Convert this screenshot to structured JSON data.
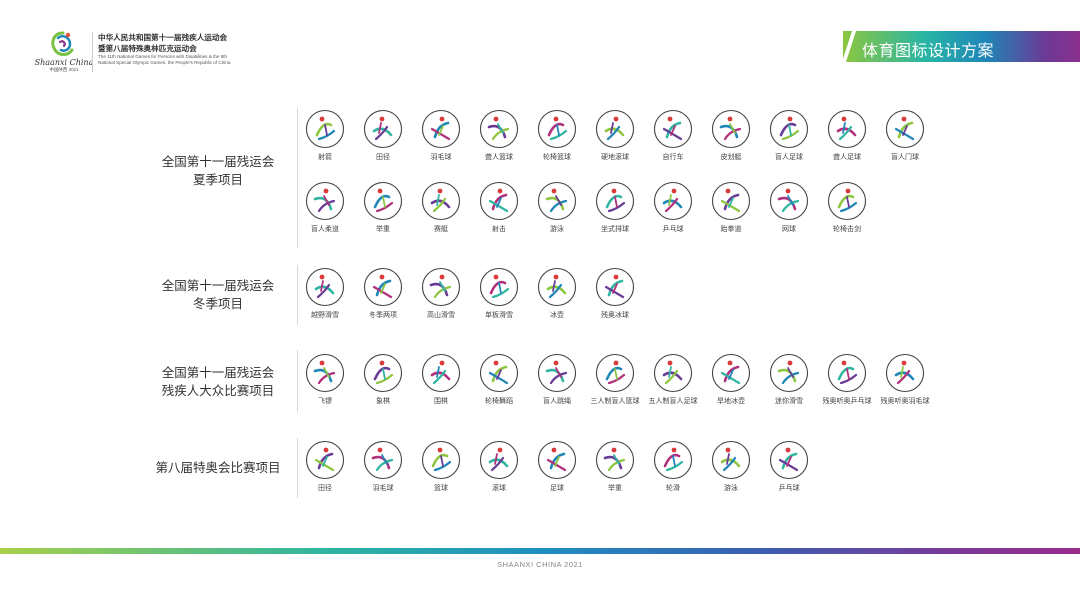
{
  "header": {
    "logo_script": "Shaanxi China",
    "logo_year": "中国陕西 2021",
    "org_cn_line1": "中华人民共和国第十一届残疾人运动会",
    "org_cn_line2": "暨第八届特殊奥林匹克运动会",
    "org_en_line1": "The 11th National Games for Persons with Disabilities & the 8th",
    "org_en_line2": "National Special Olympic Games, the People's Republic of China",
    "banner_title": "体育图标设计方案"
  },
  "colors": {
    "green": "#8cc63f",
    "teal": "#2fb5a0",
    "blue": "#1f86b8",
    "purple": "#6a3b96",
    "magenta": "#b0307e",
    "red": "#d93a3a"
  },
  "sections": [
    {
      "label_line1": "全国第十一届残运会",
      "label_line2": "夏季项目",
      "icons": [
        "射箭",
        "田径",
        "羽毛球",
        "聋人篮球",
        "轮椅篮球",
        "硬地滚球",
        "自行车",
        "皮划艇",
        "盲人足球",
        "聋人足球",
        "盲人门球",
        "盲人柔道",
        "举重",
        "赛艇",
        "射击",
        "游泳",
        "坐式排球",
        "乒乓球",
        "跆拳道",
        "网球",
        "轮椅击剑"
      ]
    },
    {
      "label_line1": "全国第十一届残运会",
      "label_line2": "冬季项目",
      "icons": [
        "越野滑雪",
        "冬季两项",
        "高山滑雪",
        "单板滑雪",
        "冰壶",
        "残奥冰球"
      ]
    },
    {
      "label_line1": "全国第十一届残运会",
      "label_line2": "残疾人大众比赛项目",
      "icons": [
        "飞镖",
        "象棋",
        "围棋",
        "轮椅舞蹈",
        "盲人跳绳",
        "三人制盲人篮球",
        "五人制盲人足球",
        "旱地冰壶",
        "迷你滑雪",
        "残奥听奥乒乓球",
        "残奥听奥羽毛球"
      ]
    },
    {
      "label_line1": "第八届特奥会比赛项目",
      "label_line2": "",
      "icons": [
        "田径",
        "羽毛球",
        "篮球",
        "滚球",
        "足球",
        "举重",
        "轮滑",
        "游泳",
        "乒乓球"
      ]
    }
  ],
  "footer": "SHAANXI CHINA 2021"
}
